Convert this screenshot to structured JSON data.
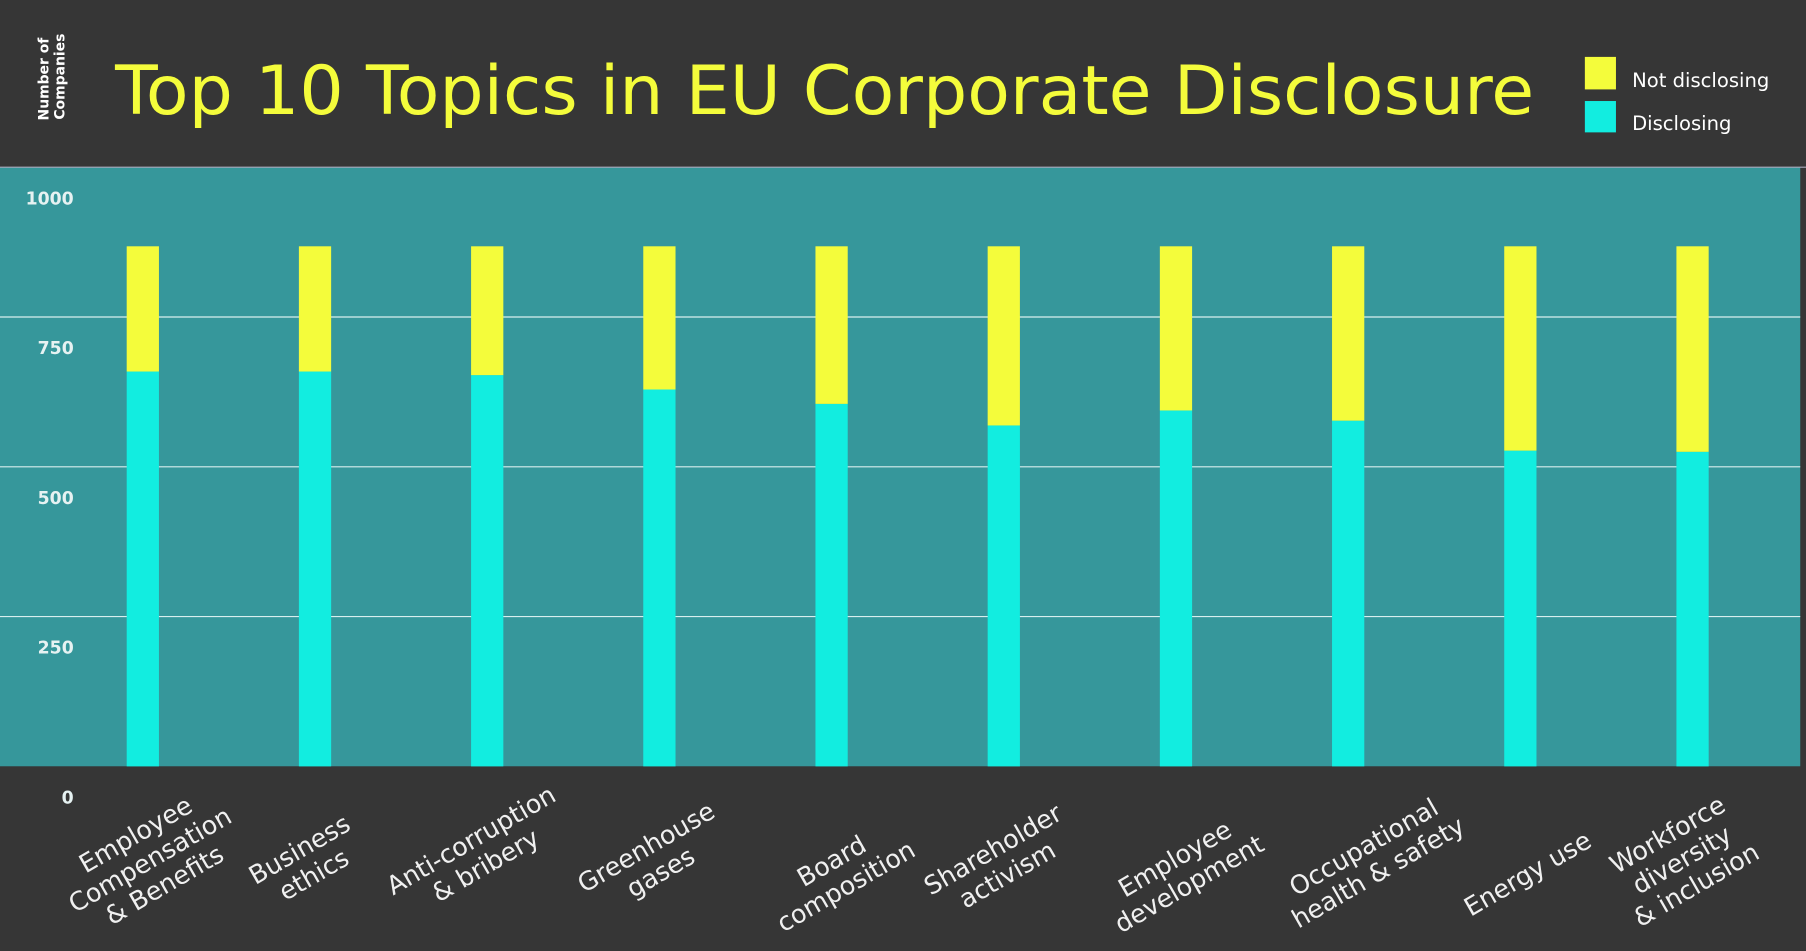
{
  "chart_data": {
    "type": "bar",
    "stacked": true,
    "title": "Top 10 Topics in EU Corporate Disclosure",
    "ylabel": [
      "Number of",
      "Companies"
    ],
    "ylim": [
      0,
      1000
    ],
    "yticks": [
      "0",
      "250",
      "500",
      "750",
      "1000"
    ],
    "grid": true,
    "legend_position": "top-right",
    "categories": [
      [
        "Employee",
        "Compensation",
        "& Benefits"
      ],
      [
        "Business",
        "ethics"
      ],
      [
        "Anti-corruption",
        "& bribery"
      ],
      [
        "Greenhouse",
        "gases"
      ],
      [
        "Board",
        "composition"
      ],
      [
        "Shareholder",
        "activism"
      ],
      [
        "Employee",
        "development"
      ],
      [
        "Occupational",
        "health & safety"
      ],
      [
        "Energy use"
      ],
      [
        "Workforce",
        "diversity",
        "& inclusion"
      ]
    ],
    "series": [
      {
        "name": "Disclosing",
        "color": "#12ede0",
        "values": [
          659,
          659,
          653,
          629,
          605,
          569,
          594,
          577,
          527,
          525
        ]
      },
      {
        "name": "Not disclosing",
        "color": "#f4fc3b",
        "values": [
          209,
          209,
          215,
          239,
          263,
          299,
          274,
          291,
          341,
          343
        ]
      }
    ]
  },
  "colors": {
    "background": "#363636",
    "plot": "#36979b",
    "title": "#f4fc3b"
  }
}
